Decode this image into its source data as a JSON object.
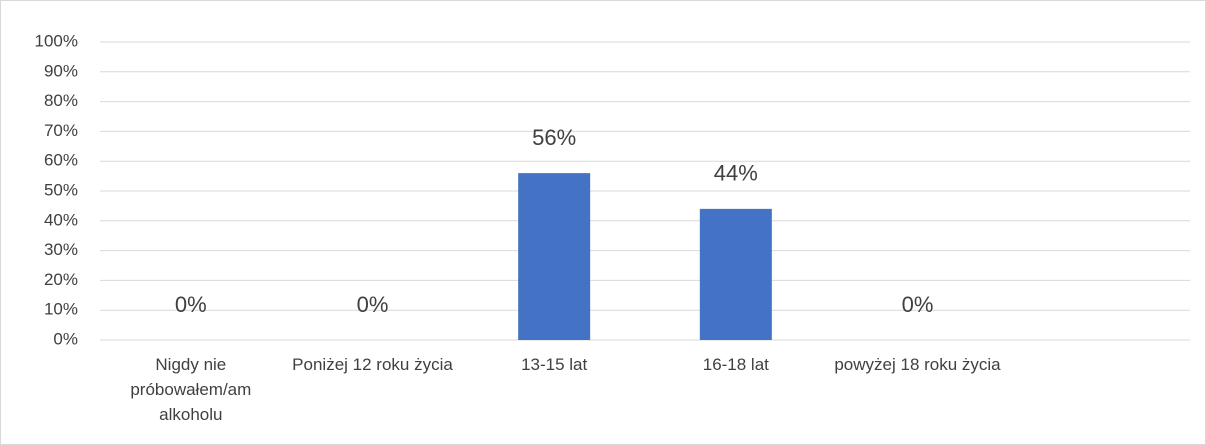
{
  "chart_data": {
    "type": "bar",
    "categories": [
      "Nigdy nie próbowałem/am alkoholu",
      "Poniżej 12 roku życia",
      "13-15 lat",
      "16-18 lat",
      "powyżej 18 roku życia",
      null
    ],
    "values": [
      0,
      0,
      56,
      44,
      0,
      null
    ],
    "value_labels": [
      "0%",
      "0%",
      "56%",
      "44%",
      "0%",
      null
    ],
    "color": "#4472c4",
    "ylim": [
      0,
      100
    ],
    "yticks": [
      {
        "value": 0,
        "label": "0%"
      },
      {
        "value": 10,
        "label": "10%"
      },
      {
        "value": 20,
        "label": "20%"
      },
      {
        "value": 30,
        "label": "30%"
      },
      {
        "value": 40,
        "label": "40%"
      },
      {
        "value": 50,
        "label": "50%"
      },
      {
        "value": 60,
        "label": "60%"
      },
      {
        "value": 70,
        "label": "70%"
      },
      {
        "value": 80,
        "label": "80%"
      },
      {
        "value": 90,
        "label": "90%"
      },
      {
        "value": 100,
        "label": "100%"
      }
    ],
    "grid": true
  }
}
